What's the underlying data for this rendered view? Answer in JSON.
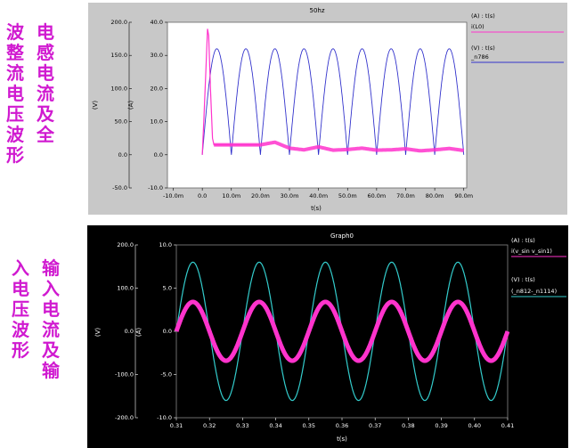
{
  "side_captions": {
    "top_col1": "电感电流及全",
    "top_col2": "波整流电压波形",
    "bottom_col1": "输入电流及输",
    "bottom_col2": "入电压波形"
  },
  "chart_data": [
    {
      "type": "line",
      "title": "50hz",
      "xlabel": "t(s)",
      "x_ticks": [
        "-10.0m",
        "0.0",
        "10.0m",
        "20.0m",
        "30.0m",
        "40.0m",
        "50.0m",
        "60.0m",
        "70.0m",
        "80.0m",
        "90.0m"
      ],
      "xlim": [
        -0.012,
        0.091
      ],
      "y_left_outer": {
        "label": "(V)",
        "ticks": [
          "200.0",
          "150.0",
          "100.0",
          "50.0",
          "0.0",
          "-50.0"
        ],
        "ylim": [
          -50,
          200
        ]
      },
      "y_left_inner": {
        "label": "(A)",
        "ticks": [
          "40.0",
          "30.0",
          "20.0",
          "10.0",
          "0.0",
          "-10.0"
        ],
        "ylim": [
          -10,
          40
        ]
      },
      "legend": [
        {
          "header": "(A) : t(s)",
          "name": "i(L0)",
          "color": "#ff33cc"
        },
        {
          "header": "(V) : t(s)",
          "name": "_n786",
          "color": "#3333cc"
        }
      ],
      "series": [
        {
          "name": "_n786",
          "axis": "V",
          "description_points": "full-wave rectified sine, period 10ms, peak ~160V",
          "peak_value": 160,
          "period": 0.01,
          "start": 0.0,
          "end": 0.09
        },
        {
          "name": "i(L0)",
          "axis": "A",
          "points": [
            [
              0.0,
              0.0
            ],
            [
              0.0005,
              10
            ],
            [
              0.0012,
              25
            ],
            [
              0.0018,
              38
            ],
            [
              0.0022,
              36
            ],
            [
              0.0028,
              20
            ],
            [
              0.0035,
              5
            ],
            [
              0.004,
              3
            ],
            [
              0.02,
              3
            ],
            [
              0.025,
              3.8
            ],
            [
              0.03,
              2
            ],
            [
              0.035,
              1.5
            ],
            [
              0.04,
              2.4
            ],
            [
              0.045,
              1.4
            ],
            [
              0.05,
              1.6
            ],
            [
              0.055,
              2.0
            ],
            [
              0.06,
              1.4
            ],
            [
              0.065,
              1.5
            ],
            [
              0.07,
              1.8
            ],
            [
              0.075,
              1.2
            ],
            [
              0.08,
              1.5
            ],
            [
              0.085,
              1.9
            ],
            [
              0.09,
              1.3
            ]
          ]
        }
      ]
    },
    {
      "type": "line",
      "title": "Graph0",
      "xlabel": "t(s)",
      "x_ticks": [
        "0.31",
        "0.32",
        "0.33",
        "0.34",
        "0.35",
        "0.36",
        "0.37",
        "0.38",
        "0.39",
        "0.40",
        "0.41"
      ],
      "xlim": [
        0.31,
        0.41
      ],
      "y_left_outer": {
        "label": "(V)",
        "ticks": [
          "200.0",
          "100.0",
          "0.0",
          "-100.0",
          "-200.0"
        ],
        "ylim": [
          -200,
          200
        ]
      },
      "y_left_inner": {
        "label": "(A)",
        "ticks": [
          "10.0",
          "5.0",
          "0.0",
          "-5.0",
          "-10.0"
        ],
        "ylim": [
          -10,
          10
        ]
      },
      "legend": [
        {
          "header": "(A) : t(s)",
          "name": "i(v_sin v_sin1)",
          "color": "#ff33cc"
        },
        {
          "header": "(V) : t(s)",
          "name": "(_n812-_n1114)",
          "color": "#33cccc"
        }
      ],
      "series": [
        {
          "name": "(_n812-_n1114)",
          "axis": "V",
          "amplitude": 160,
          "frequency": 50,
          "phase_start": 0.31
        },
        {
          "name": "i(v_sin v_sin1)",
          "axis": "A",
          "amplitude": 3.4,
          "frequency": 50,
          "phase_start": 0.31
        }
      ]
    }
  ]
}
